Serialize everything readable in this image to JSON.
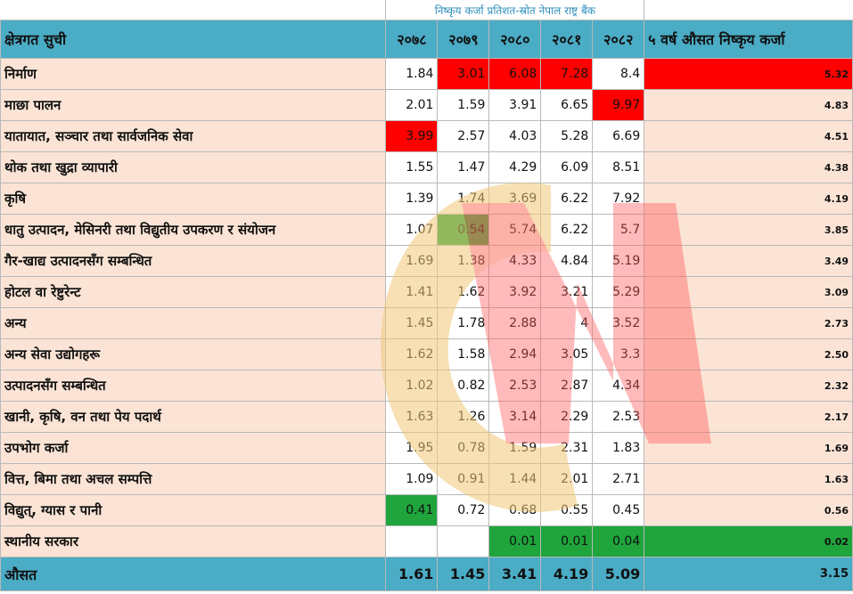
{
  "source_note": "निष्कृय कर्जा प्रतिशत-स्रोत नेपाल राष्ट्र बैंक",
  "headers": {
    "sector": "क्षेत्रगत सुची",
    "years": [
      "२०७८",
      "२०७९",
      "२०८०",
      "२०८१",
      "२०८२"
    ],
    "avg5": "५ वर्ष औसत निष्कृय कर्जा"
  },
  "rows": [
    {
      "sector": "निर्माण",
      "values": [
        "1.84",
        "3.01",
        "6.08",
        "7.28",
        "8.4"
      ],
      "avg": "5.32"
    },
    {
      "sector": "माछा पालन",
      "values": [
        "2.01",
        "1.59",
        "3.91",
        "6.65",
        "9.97"
      ],
      "avg": "4.83"
    },
    {
      "sector": "यातायात, सञ्चार तथा सार्वजनिक सेवा",
      "values": [
        "3.99",
        "2.57",
        "4.03",
        "5.28",
        "6.69"
      ],
      "avg": "4.51"
    },
    {
      "sector": "थोक तथा खुद्रा व्यापारी",
      "values": [
        "1.55",
        "1.47",
        "4.29",
        "6.09",
        "8.51"
      ],
      "avg": "4.38"
    },
    {
      "sector": "कृषि",
      "values": [
        "1.39",
        "1.74",
        "3.69",
        "6.22",
        "7.92"
      ],
      "avg": "4.19"
    },
    {
      "sector": "धातु उत्पादन, मेसिनरी तथा विद्युतीय उपकरण र संयोजन",
      "values": [
        "1.07",
        "0.54",
        "5.74",
        "6.22",
        "5.7"
      ],
      "avg": "3.85"
    },
    {
      "sector": "गैर-खाद्य उत्पादनसँग सम्बन्धित",
      "values": [
        "1.69",
        "1.38",
        "4.33",
        "4.84",
        "5.19"
      ],
      "avg": "3.49"
    },
    {
      "sector": "होटल वा रेष्टुरेन्ट",
      "values": [
        "1.41",
        "1.62",
        "3.92",
        "3.21",
        "5.29"
      ],
      "avg": "3.09"
    },
    {
      "sector": "अन्य",
      "values": [
        "1.45",
        "1.78",
        "2.88",
        "4",
        "3.52"
      ],
      "avg": "2.73"
    },
    {
      "sector": "अन्य सेवा उद्योगहरू",
      "values": [
        "1.62",
        "1.58",
        "2.94",
        "3.05",
        "3.3"
      ],
      "avg": "2.50"
    },
    {
      "sector": "उत्पादनसँग सम्बन्धित",
      "values": [
        "1.02",
        "0.82",
        "2.53",
        "2.87",
        "4.34"
      ],
      "avg": "2.32"
    },
    {
      "sector": "खानी, कृषि, वन तथा पेय पदार्थ",
      "values": [
        "1.63",
        "1.26",
        "3.14",
        "2.29",
        "2.53"
      ],
      "avg": "2.17"
    },
    {
      "sector": "उपभोग कर्जा",
      "values": [
        "1.95",
        "0.78",
        "1.59",
        "2.31",
        "1.83"
      ],
      "avg": "1.69"
    },
    {
      "sector": "वित्त, बिमा तथा अचल सम्पत्ति",
      "values": [
        "1.09",
        "0.91",
        "1.44",
        "2.01",
        "2.71"
      ],
      "avg": "1.63"
    },
    {
      "sector": "विद्युत्, ग्यास र पानी",
      "values": [
        "0.41",
        "0.72",
        "0.68",
        "0.55",
        "0.45"
      ],
      "avg": "0.56"
    },
    {
      "sector": "स्थानीय सरकार",
      "values": [
        "",
        "",
        "0.01",
        "0.01",
        "0.04"
      ],
      "avg": "0.02"
    }
  ],
  "average_row": {
    "label": "औसत",
    "values": [
      "1.61",
      "1.45",
      "3.41",
      "4.19",
      "5.09"
    ],
    "avg": "3.15"
  },
  "highlights": {
    "red": "#ff0000",
    "green": "#1fa53c",
    "red_cells": [
      [
        0,
        1
      ],
      [
        0,
        2
      ],
      [
        0,
        3
      ],
      [
        0,
        5
      ],
      [
        1,
        4
      ],
      [
        2,
        0
      ]
    ],
    "green_cells": [
      [
        5,
        1
      ],
      [
        14,
        0
      ],
      [
        15,
        2
      ],
      [
        15,
        3
      ],
      [
        15,
        4
      ],
      [
        15,
        5
      ]
    ]
  },
  "colors": {
    "header_bg": "#4bacc6",
    "sector_bg": "#fbe4d5",
    "source_text": "#2e8fbf"
  }
}
